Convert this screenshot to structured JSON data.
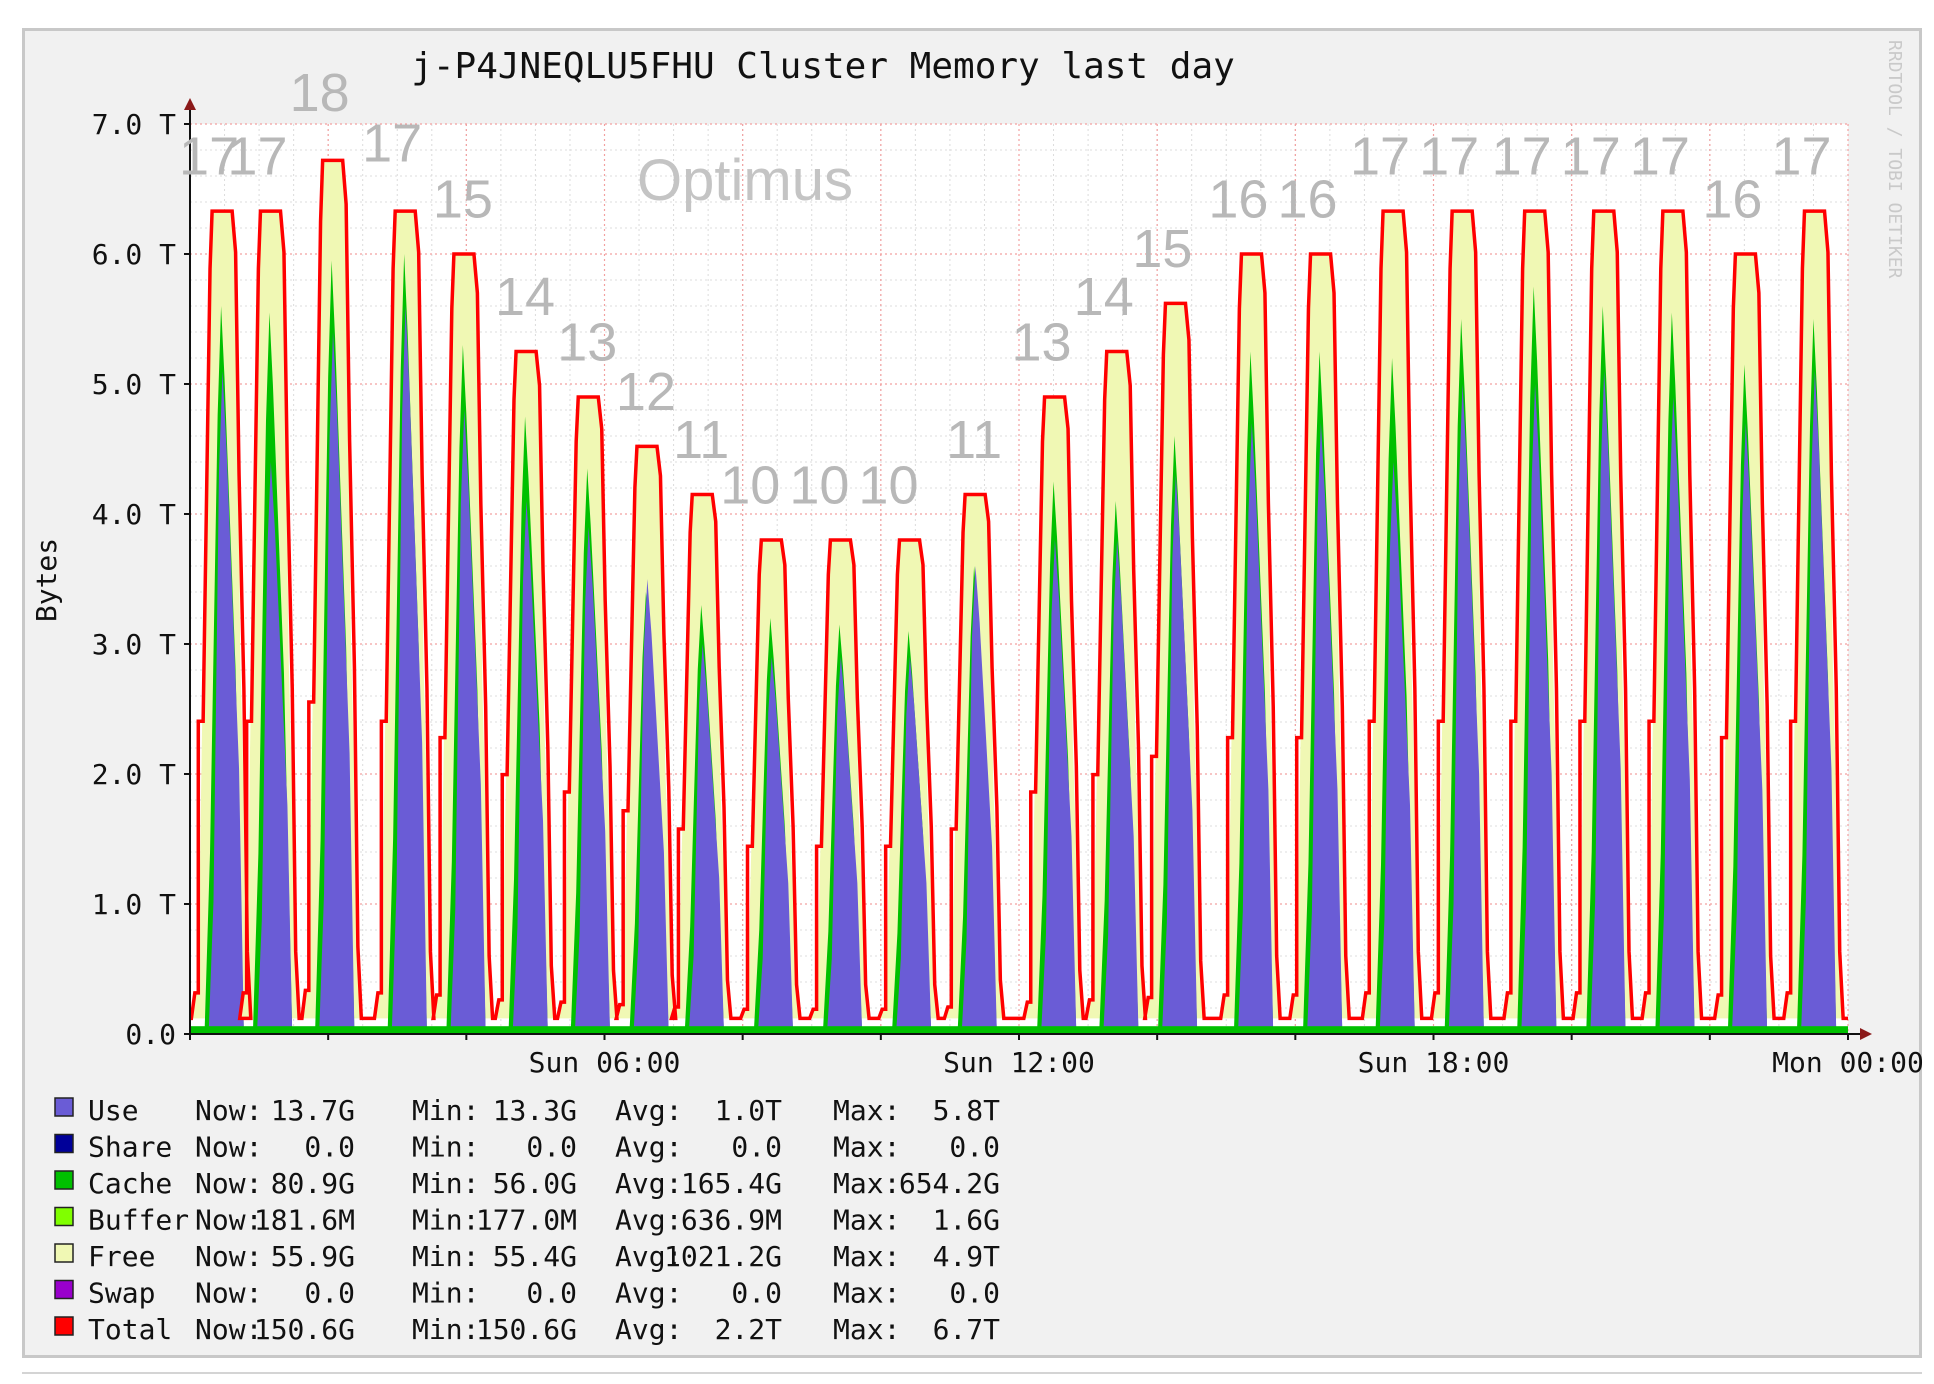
{
  "chart_data": {
    "type": "area",
    "title": "j-P4JNEQLU5FHU Cluster Memory last day",
    "ylabel": "Bytes",
    "xlabel": "",
    "ylim": [
      0,
      7.0
    ],
    "yunit": "T",
    "yticks": [
      "0.0",
      "1.0 T",
      "2.0 T",
      "3.0 T",
      "4.0 T",
      "5.0 T",
      "6.0 T",
      "7.0 T"
    ],
    "xticks": [
      {
        "label": "Sun 06:00",
        "hour": 6
      },
      {
        "label": "Sun 12:00",
        "hour": 12
      },
      {
        "label": "Sun 18:00",
        "hour": 18
      },
      {
        "label": "Mon 00:00",
        "hour": 24
      }
    ],
    "xrange_hours": [
      0.0,
      24.0
    ],
    "grid": true,
    "watermark": "RRDTOOL / TOBI OETIKER",
    "series_colors": {
      "Use": "#6a5cd6",
      "Share": "#000099",
      "Cache": "#00c000",
      "Buffer": "#80ff00",
      "Free": "#f0f8b4",
      "Swap": "#9900cc",
      "Total": "#ff0000"
    },
    "peaks": [
      {
        "hour": 0.45,
        "total": 6.33,
        "use": 5.1,
        "cache_top": 5.6,
        "annotation": "17"
      },
      {
        "hour": 1.15,
        "total": 6.33,
        "use": 4.4,
        "cache_top": 5.55,
        "annotation": "17"
      },
      {
        "hour": 2.05,
        "total": 6.72,
        "use": 5.4,
        "cache_top": 5.95,
        "annotation": "18"
      },
      {
        "hour": 3.1,
        "total": 6.33,
        "use": 5.6,
        "cache_top": 6.0,
        "annotation": "17"
      },
      {
        "hour": 3.95,
        "total": 6.0,
        "use": 4.8,
        "cache_top": 5.3,
        "annotation": "15"
      },
      {
        "hour": 4.85,
        "total": 5.25,
        "use": 4.1,
        "cache_top": 4.75,
        "annotation": "14"
      },
      {
        "hour": 5.75,
        "total": 4.9,
        "use": 3.9,
        "cache_top": 4.35,
        "annotation": "13"
      },
      {
        "hour": 6.6,
        "total": 4.52,
        "use": 3.5,
        "cache_top": 3.4,
        "annotation": "12"
      },
      {
        "hour": 7.4,
        "total": 4.15,
        "use": 3.0,
        "cache_top": 3.3,
        "annotation": "11"
      },
      {
        "hour": 8.4,
        "total": 3.8,
        "use": 2.9,
        "cache_top": 3.2,
        "annotation": "10"
      },
      {
        "hour": 9.4,
        "total": 3.8,
        "use": 2.9,
        "cache_top": 3.15,
        "annotation": "10"
      },
      {
        "hour": 10.4,
        "total": 3.8,
        "use": 2.9,
        "cache_top": 3.1,
        "annotation": "10"
      },
      {
        "hour": 11.35,
        "total": 4.15,
        "use": 3.6,
        "cache_top": 3.6,
        "annotation": "11"
      },
      {
        "hour": 12.5,
        "total": 4.9,
        "use": 3.8,
        "cache_top": 4.25,
        "annotation": "13"
      },
      {
        "hour": 13.4,
        "total": 5.25,
        "use": 3.8,
        "cache_top": 4.1,
        "annotation": "14"
      },
      {
        "hour": 14.25,
        "total": 5.62,
        "use": 4.3,
        "cache_top": 4.6,
        "annotation": "15"
      },
      {
        "hour": 15.35,
        "total": 6.0,
        "use": 4.7,
        "cache_top": 5.25,
        "annotation": "16"
      },
      {
        "hour": 16.35,
        "total": 6.0,
        "use": 4.7,
        "cache_top": 5.25,
        "annotation": "16"
      },
      {
        "hour": 17.4,
        "total": 6.33,
        "use": 4.4,
        "cache_top": 5.2,
        "annotation": "17"
      },
      {
        "hour": 18.4,
        "total": 6.33,
        "use": 5.0,
        "cache_top": 5.5,
        "annotation": "17"
      },
      {
        "hour": 19.45,
        "total": 6.33,
        "use": 5.0,
        "cache_top": 5.75,
        "annotation": "17"
      },
      {
        "hour": 20.45,
        "total": 6.33,
        "use": 5.1,
        "cache_top": 5.6,
        "annotation": "17"
      },
      {
        "hour": 21.45,
        "total": 6.33,
        "use": 4.9,
        "cache_top": 5.55,
        "annotation": "17"
      },
      {
        "hour": 22.5,
        "total": 6.0,
        "use": 4.7,
        "cache_top": 5.15,
        "annotation": "16"
      },
      {
        "hour": 23.5,
        "total": 6.33,
        "use": 5.1,
        "cache_top": 5.5,
        "annotation": "17"
      }
    ],
    "annotations_extra": [
      "Optimus"
    ],
    "legend": [
      {
        "name": "Use",
        "color": "#6a5cd6",
        "now": "13.7G",
        "min": "13.3G",
        "avg": "1.0T",
        "max": "5.8T"
      },
      {
        "name": "Share",
        "color": "#000099",
        "now": "0.0",
        "min": "0.0",
        "avg": "0.0",
        "max": "0.0"
      },
      {
        "name": "Cache",
        "color": "#00c000",
        "now": "80.9G",
        "min": "56.0G",
        "avg": "165.4G",
        "max": "654.2G"
      },
      {
        "name": "Buffer",
        "color": "#80ff00",
        "now": "181.6M",
        "min": "177.0M",
        "avg": "636.9M",
        "max": "1.6G"
      },
      {
        "name": "Free",
        "color": "#f0f8b4",
        "now": "55.9G",
        "min": "55.4G",
        "avg": "1021.2G",
        "max": "4.9T"
      },
      {
        "name": "Swap",
        "color": "#9900cc",
        "now": "0.0",
        "min": "0.0",
        "avg": "0.0",
        "max": "0.0"
      },
      {
        "name": "Total",
        "color": "#ff0000",
        "now": "150.6G",
        "min": "150.6G",
        "avg": "2.2T",
        "max": "6.7T"
      }
    ],
    "legend_headers": {
      "now": "Now:",
      "min": "Min:",
      "avg": "Avg:",
      "max": "Max:"
    }
  }
}
